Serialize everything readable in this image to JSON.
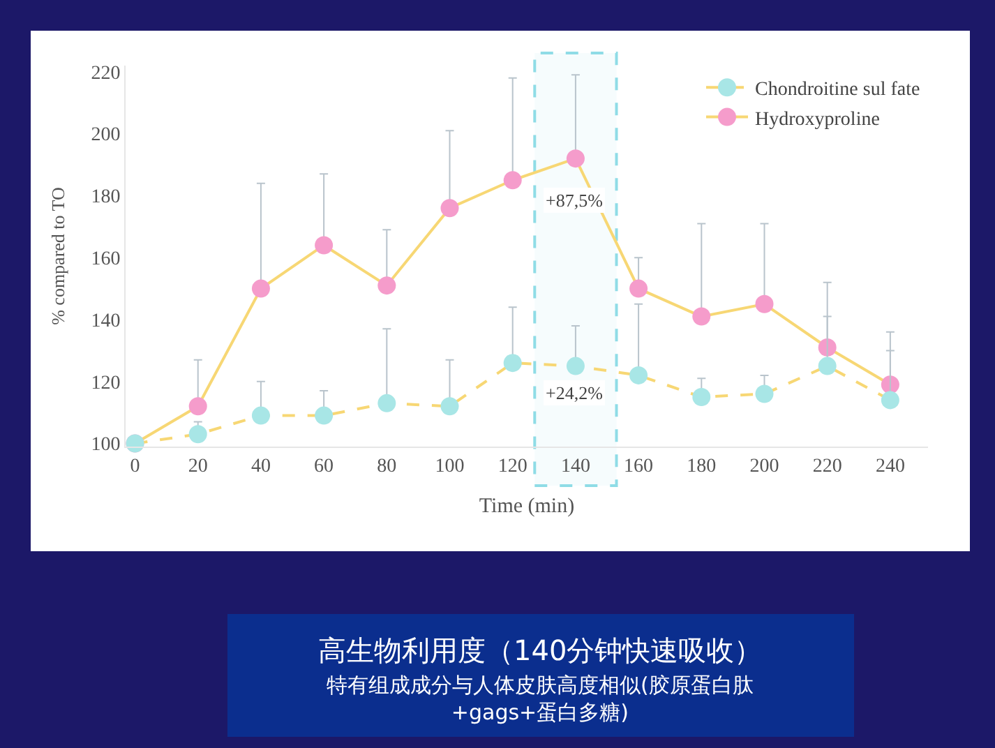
{
  "chart_data": {
    "type": "line",
    "xlabel": "Time (min)",
    "ylabel": "% compared to TO",
    "x": [
      0,
      20,
      40,
      60,
      80,
      100,
      120,
      140,
      160,
      180,
      200,
      220,
      240
    ],
    "series": [
      {
        "name": "Chondroitine sul fate",
        "color": "#f7d774",
        "colors": [
          "#a8e6e6",
          "#a8e6e6",
          "#a8e6e6",
          "#a8e6e6",
          "#a8e6e6",
          "#a8e6e6",
          "#a8e6e6",
          "#a8e6e6",
          "#a8e6e6",
          "#a8e6e6",
          "#a8e6e6",
          "#a8e6e6",
          "#a8e6e6"
        ],
        "line_style": "dashed",
        "values": [
          100,
          103,
          109,
          109,
          113,
          112,
          126,
          125,
          122,
          115,
          116,
          125,
          114
        ],
        "errors": [
          null,
          [
            103,
            107
          ],
          [
            109,
            120
          ],
          [
            109,
            117
          ],
          [
            113,
            137
          ],
          [
            112,
            127
          ],
          [
            126,
            144
          ],
          [
            125,
            138
          ],
          [
            122,
            145
          ],
          [
            115,
            121
          ],
          [
            116,
            122
          ],
          [
            125,
            141
          ],
          [
            114,
            130
          ]
        ]
      },
      {
        "name": "Hydroxyproline",
        "color": "#f7d774",
        "colors": [
          "#f59ccb",
          "#f59ccb",
          "#f59ccb",
          "#f59ccb",
          "#f59ccb",
          "#f59ccb",
          "#f59ccb",
          "#f59ccb",
          "#f59ccb",
          "#f59ccb",
          "#f59ccb",
          "#f59ccb",
          "#f59ccb"
        ],
        "line_style": "solid",
        "values": [
          100,
          112,
          150,
          164,
          151,
          176,
          185,
          192,
          150,
          141,
          145,
          131,
          119
        ],
        "errors": [
          null,
          [
            112,
            127
          ],
          [
            150,
            184
          ],
          [
            164,
            187
          ],
          [
            151,
            169
          ],
          [
            176,
            201
          ],
          [
            185,
            218
          ],
          [
            192,
            219
          ],
          [
            150,
            160
          ],
          [
            141,
            171
          ],
          [
            145,
            171
          ],
          [
            131,
            152
          ],
          [
            119,
            136
          ]
        ]
      }
    ],
    "marker": "circle",
    "xlim": [
      -3,
      252
    ],
    "ylim": [
      99,
      222
    ],
    "xticks": [
      0,
      20,
      40,
      60,
      80,
      100,
      120,
      140,
      160,
      180,
      200,
      220,
      240
    ],
    "yticks": [
      100,
      120,
      140,
      160,
      180,
      200,
      220
    ],
    "grid": false,
    "legend": "top right",
    "bands": [
      {
        "axis": "x",
        "from": 127,
        "to": 153,
        "color": "#8fdce6"
      }
    ],
    "annotations": [
      "+87,5%",
      "+24,2%",
      "高生物利用度（140分钟快速吸收）",
      "特有组成成分与人体皮肤高度相似(胶原蛋白肽\n+gags+蛋白多糖)"
    ]
  }
}
